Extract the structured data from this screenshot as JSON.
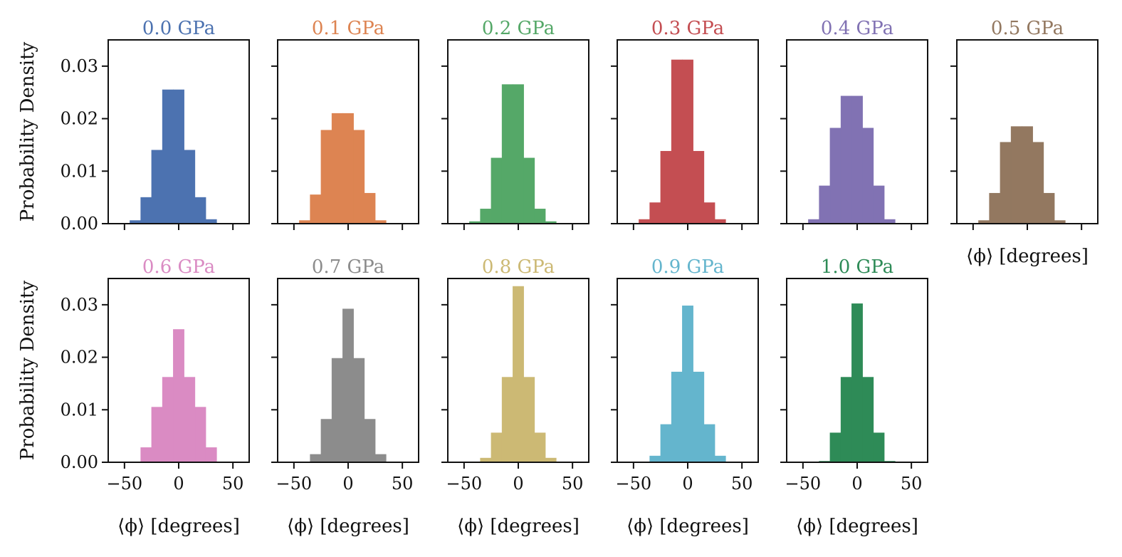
{
  "figure": {
    "type": "histogram-grid"
  },
  "chart_data": [
    {
      "type": "bar",
      "title": "0.0 GPa",
      "color": "#4c72b0",
      "xlabel": "",
      "ylabel": "Probability Density",
      "bin_edges": [
        -45,
        -35,
        -25,
        -15,
        -5,
        5,
        15,
        25,
        35,
        45
      ],
      "values": [
        0.0006,
        0.005,
        0.014,
        0.0255,
        0.0255,
        0.014,
        0.005,
        0.0008,
        0
      ],
      "xlim": [
        -65,
        65
      ],
      "ylim": [
        0,
        0.035
      ],
      "xticks": [
        -50,
        0,
        50
      ],
      "yticks": [
        0,
        0.01,
        0.02,
        0.03
      ],
      "xtick_labels": [],
      "ytick_labels": [
        "0.00",
        "0.01",
        "0.02",
        "0.03"
      ]
    },
    {
      "type": "bar",
      "title": "0.1 GPa",
      "color": "#dd8452",
      "xlabel": "",
      "ylabel": "",
      "bin_edges": [
        -45,
        -35,
        -25,
        -15,
        -5,
        5,
        15,
        25,
        35,
        45
      ],
      "values": [
        0.0006,
        0.0055,
        0.0178,
        0.021,
        0.021,
        0.0178,
        0.0058,
        0.0006,
        0
      ],
      "xlim": [
        -65,
        65
      ],
      "ylim": [
        0,
        0.035
      ],
      "xticks": [
        -50,
        0,
        50
      ],
      "yticks": [
        0,
        0.01,
        0.02,
        0.03
      ],
      "xtick_labels": [],
      "ytick_labels": []
    },
    {
      "type": "bar",
      "title": "0.2 GPa",
      "color": "#55a868",
      "xlabel": "",
      "ylabel": "",
      "bin_edges": [
        -45,
        -35,
        -25,
        -15,
        -5,
        5,
        15,
        25,
        35,
        45
      ],
      "values": [
        0.0004,
        0.0028,
        0.0125,
        0.0265,
        0.0265,
        0.0125,
        0.0028,
        0.0004,
        0
      ],
      "xlim": [
        -65,
        65
      ],
      "ylim": [
        0,
        0.035
      ],
      "xticks": [
        -50,
        0,
        50
      ],
      "yticks": [
        0,
        0.01,
        0.02,
        0.03
      ],
      "xtick_labels": [],
      "ytick_labels": []
    },
    {
      "type": "bar",
      "title": "0.3 GPa",
      "color": "#c44e52",
      "xlabel": "",
      "ylabel": "",
      "bin_edges": [
        -45,
        -35,
        -25,
        -15,
        -5,
        5,
        15,
        25,
        35,
        45
      ],
      "values": [
        0.0008,
        0.004,
        0.0138,
        0.0312,
        0.0312,
        0.0138,
        0.004,
        0.0008,
        0
      ],
      "xlim": [
        -65,
        65
      ],
      "ylim": [
        0,
        0.035
      ],
      "xticks": [
        -50,
        0,
        50
      ],
      "yticks": [
        0,
        0.01,
        0.02,
        0.03
      ],
      "xtick_labels": [],
      "ytick_labels": []
    },
    {
      "type": "bar",
      "title": "0.4 GPa",
      "color": "#8172b3",
      "xlabel": "",
      "ylabel": "",
      "bin_edges": [
        -45,
        -35,
        -25,
        -15,
        -5,
        5,
        15,
        25,
        35,
        45
      ],
      "values": [
        0.0008,
        0.0072,
        0.0182,
        0.0243,
        0.0243,
        0.0182,
        0.0072,
        0.0008,
        0
      ],
      "xlim": [
        -65,
        65
      ],
      "ylim": [
        0,
        0.035
      ],
      "xticks": [
        -50,
        0,
        50
      ],
      "yticks": [
        0,
        0.01,
        0.02,
        0.03
      ],
      "xtick_labels": [],
      "ytick_labels": []
    },
    {
      "type": "bar",
      "title": "0.5 GPa",
      "color": "#937860",
      "xlabel": "⟨ϕ⟩ [degrees]",
      "ylabel": "",
      "bin_edges": [
        -45,
        -35,
        -25,
        -15,
        -5,
        5,
        15,
        25,
        35,
        45
      ],
      "values": [
        0.0006,
        0.0058,
        0.0155,
        0.0185,
        0.0185,
        0.0155,
        0.0058,
        0.0006,
        0
      ],
      "xlim": [
        -65,
        65
      ],
      "ylim": [
        0,
        0.035
      ],
      "xticks": [
        -50,
        0,
        50
      ],
      "yticks": [
        0,
        0.01,
        0.02,
        0.03
      ],
      "xtick_labels": [],
      "ytick_labels": []
    },
    {
      "type": "bar",
      "title": "0.6 GPa",
      "color": "#da8bc3",
      "xlabel": "⟨ϕ⟩ [degrees]",
      "ylabel": "Probability Density",
      "bin_edges": [
        -45,
        -35,
        -25,
        -15,
        -5,
        5,
        15,
        25,
        35,
        45
      ],
      "values": [
        0,
        0.0028,
        0.0105,
        0.0162,
        0.0253,
        0.0162,
        0.0105,
        0.0028,
        0
      ],
      "xlim": [
        -65,
        65
      ],
      "ylim": [
        0,
        0.035
      ],
      "xticks": [
        -50,
        0,
        50
      ],
      "yticks": [
        0,
        0.01,
        0.02,
        0.03
      ],
      "xtick_labels": [
        "−50",
        "0",
        "50"
      ],
      "ytick_labels": [
        "0.00",
        "0.01",
        "0.02",
        "0.03"
      ]
    },
    {
      "type": "bar",
      "title": "0.7 GPa",
      "color": "#8c8c8c",
      "xlabel": "⟨ϕ⟩ [degrees]",
      "ylabel": "",
      "bin_edges": [
        -45,
        -35,
        -25,
        -15,
        -5,
        5,
        15,
        25,
        35,
        45
      ],
      "values": [
        0,
        0.0015,
        0.0082,
        0.0198,
        0.0292,
        0.0198,
        0.0082,
        0.0015,
        0
      ],
      "xlim": [
        -65,
        65
      ],
      "ylim": [
        0,
        0.035
      ],
      "xticks": [
        -50,
        0,
        50
      ],
      "yticks": [
        0,
        0.01,
        0.02,
        0.03
      ],
      "xtick_labels": [
        "−50",
        "0",
        "50"
      ],
      "ytick_labels": []
    },
    {
      "type": "bar",
      "title": "0.8 GPa",
      "color": "#ccb974",
      "xlabel": "⟨ϕ⟩ [degrees]",
      "ylabel": "",
      "bin_edges": [
        -45,
        -35,
        -25,
        -15,
        -5,
        5,
        15,
        25,
        35,
        45
      ],
      "values": [
        0,
        0.0008,
        0.0056,
        0.0162,
        0.0335,
        0.0162,
        0.0056,
        0.0008,
        0
      ],
      "xlim": [
        -65,
        65
      ],
      "ylim": [
        0,
        0.035
      ],
      "xticks": [
        -50,
        0,
        50
      ],
      "yticks": [
        0,
        0.01,
        0.02,
        0.03
      ],
      "xtick_labels": [
        "−50",
        "0",
        "50"
      ],
      "ytick_labels": []
    },
    {
      "type": "bar",
      "title": "0.9 GPa",
      "color": "#64b5cd",
      "xlabel": "⟨ϕ⟩ [degrees]",
      "ylabel": "",
      "bin_edges": [
        -45,
        -35,
        -25,
        -15,
        -5,
        5,
        15,
        25,
        35,
        45
      ],
      "values": [
        0,
        0.0012,
        0.0072,
        0.0172,
        0.0298,
        0.0172,
        0.0072,
        0.0012,
        0
      ],
      "xlim": [
        -65,
        65
      ],
      "ylim": [
        0,
        0.035
      ],
      "xticks": [
        -50,
        0,
        50
      ],
      "yticks": [
        0,
        0.01,
        0.02,
        0.03
      ],
      "xtick_labels": [
        "−50",
        "0",
        "50"
      ],
      "ytick_labels": []
    },
    {
      "type": "bar",
      "title": "1.0 GPa",
      "color": "#2e8b57",
      "xlabel": "⟨ϕ⟩ [degrees]",
      "ylabel": "",
      "bin_edges": [
        -45,
        -35,
        -25,
        -15,
        -5,
        5,
        15,
        25,
        35,
        45
      ],
      "values": [
        0,
        0.0002,
        0.0056,
        0.0162,
        0.0302,
        0.0162,
        0.0056,
        0.0002,
        0
      ],
      "xlim": [
        -65,
        65
      ],
      "ylim": [
        0,
        0.035
      ],
      "xticks": [
        -50,
        0,
        50
      ],
      "yticks": [
        0,
        0.01,
        0.02,
        0.03
      ],
      "xtick_labels": [
        "−50",
        "0",
        "50"
      ],
      "ytick_labels": []
    }
  ]
}
